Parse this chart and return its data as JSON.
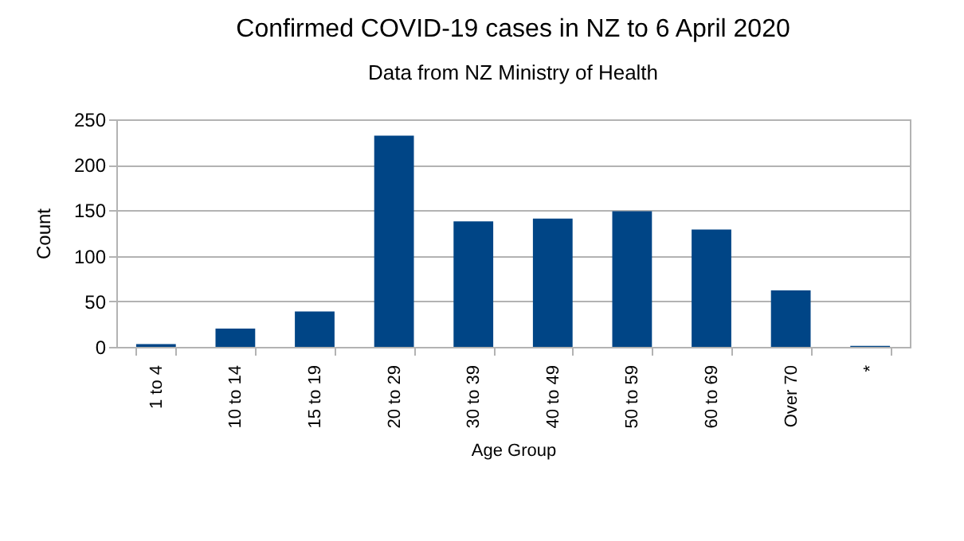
{
  "chart_data": {
    "type": "bar",
    "title": "Confirmed COVID-19 cases in NZ to 6 April 2020",
    "subtitle": "Data from NZ Ministry of Health",
    "xlabel": "Age Group",
    "ylabel": "Count",
    "categories": [
      "1 to 4",
      "10 to 14",
      "15 to 19",
      "20 to 29",
      "30 to 39",
      "40 to 49",
      "50 to 59",
      "60 to 69",
      "Over 70",
      "*"
    ],
    "values": [
      3,
      20,
      39,
      232,
      138,
      141,
      149,
      129,
      62,
      1
    ],
    "color": "#004586",
    "ylim": [
      0,
      250
    ],
    "yticks": [
      0,
      50,
      100,
      150,
      200,
      250
    ],
    "grid": "y"
  }
}
